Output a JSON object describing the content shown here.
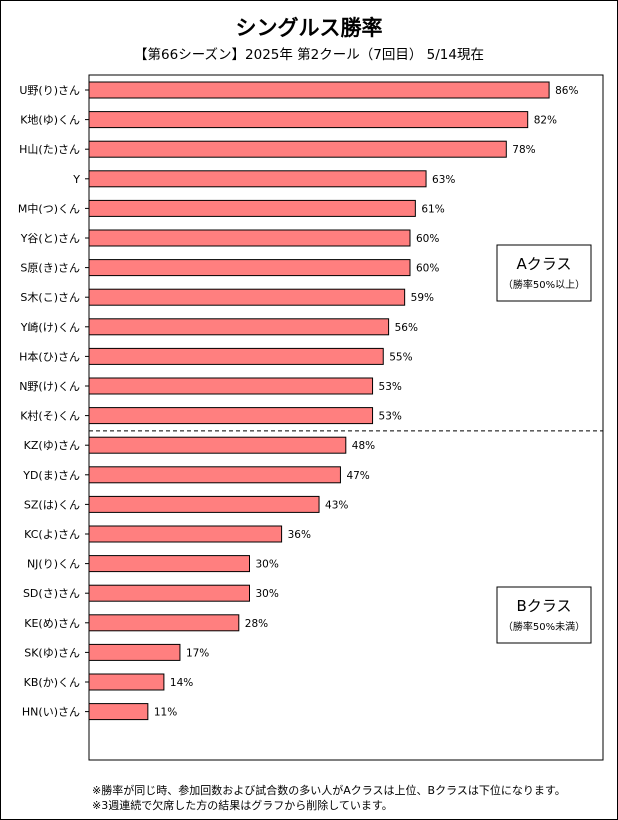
{
  "title": "シングルス勝率",
  "subtitle": "【第66シーズン】2025年 第2クール（7回目） 5/14現在",
  "chart_data": {
    "type": "bar",
    "orientation": "horizontal",
    "xlim": [
      0,
      100
    ],
    "value_suffix": "%",
    "categories": [
      "U野(り)さん",
      "K地(ゆ)くん",
      "H山(た)さん",
      "Y",
      "M中(つ)くん",
      "Y谷(と)さん",
      "S原(き)さん",
      "S木(こ)さん",
      "Y崎(け)くん",
      "H本(ひ)さん",
      "N野(け)くん",
      "K村(そ)くん",
      "KZ(ゆ)さん",
      "YD(ま)さん",
      "SZ(は)くん",
      "KC(よ)さん",
      "NJ(り)くん",
      "SD(さ)さん",
      "KE(め)さん",
      "SK(ゆ)さん",
      "KB(か)くん",
      "HN(い)さん"
    ],
    "values": [
      86,
      82,
      78,
      63,
      61,
      60,
      60,
      59,
      56,
      55,
      53,
      53,
      48,
      47,
      43,
      36,
      30,
      30,
      28,
      17,
      14,
      11
    ],
    "bar_color": "#ff7f7f",
    "groups": [
      {
        "title": "Aクラス",
        "subtitle": "（勝率50%以上）",
        "count": 12
      },
      {
        "title": "Bクラス",
        "subtitle": "（勝率50%未満）",
        "count": 10
      }
    ]
  },
  "notes": [
    "※勝率が同じ時、参加回数および試合数の多い人がAクラスは上位、Bクラスは下位になります。",
    "※3週連続で欠席した方の結果はグラフから削除しています。"
  ]
}
